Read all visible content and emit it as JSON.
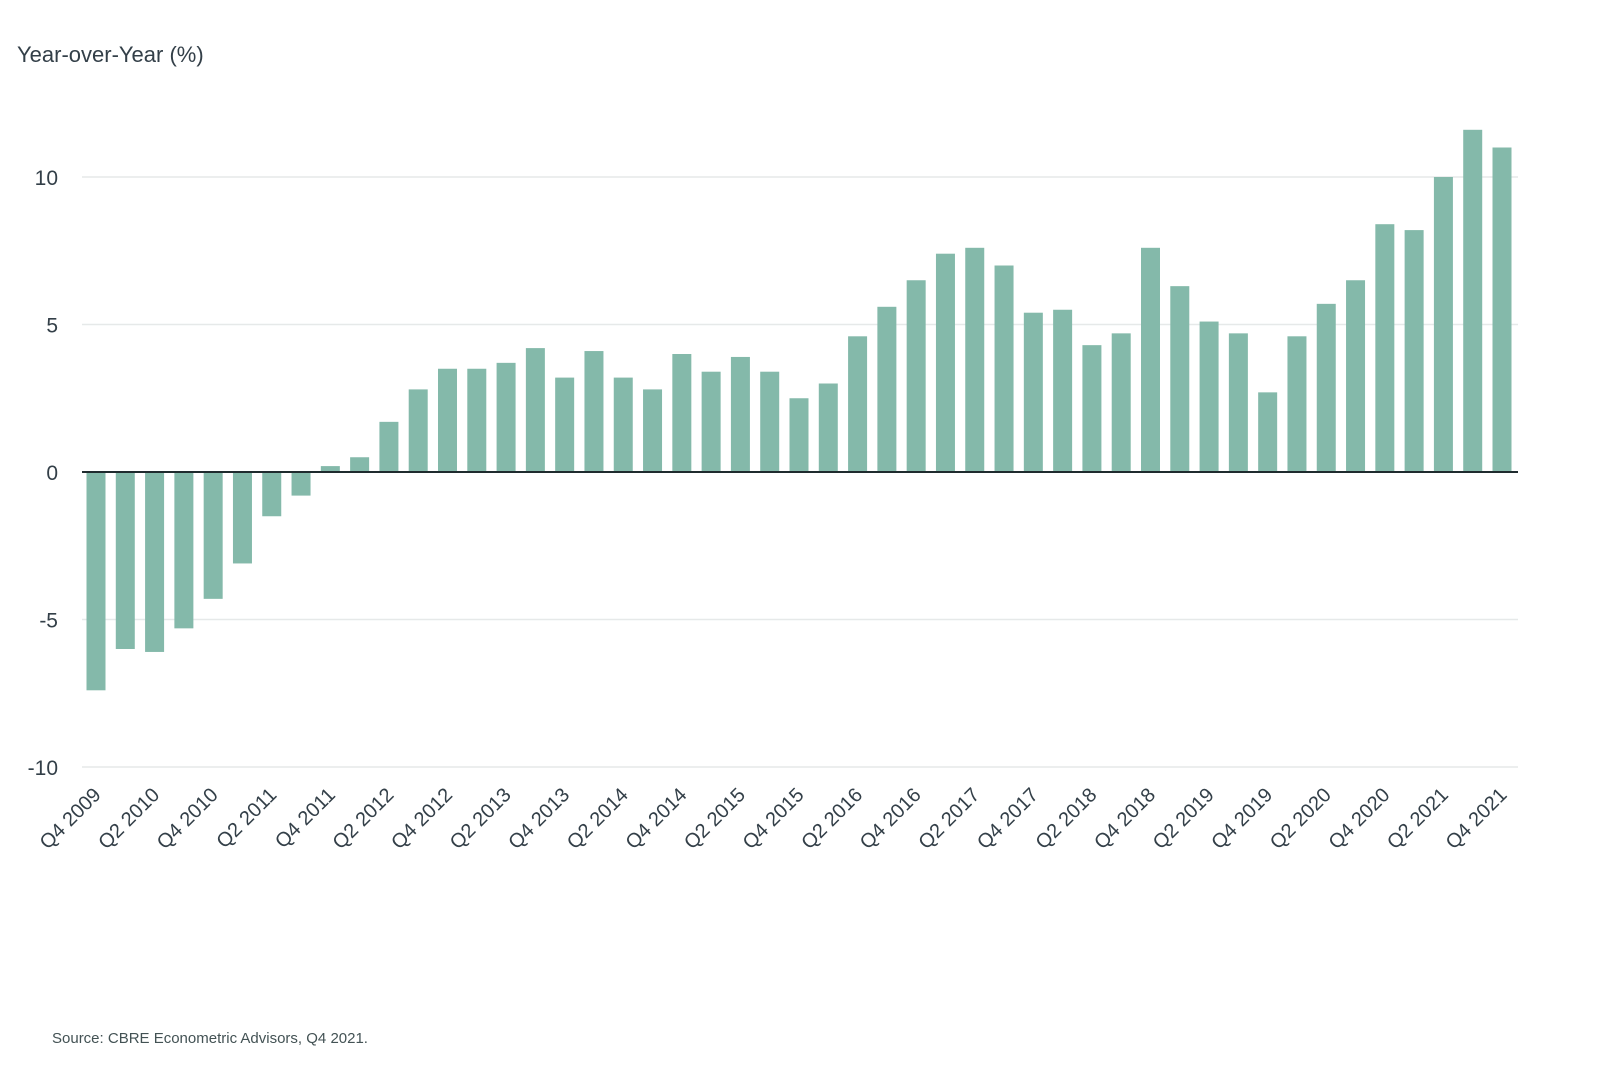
{
  "chart_data": {
    "type": "bar",
    "ylabel": "Year-over-Year (%)",
    "xlabel": "",
    "ylim": [
      -10,
      12
    ],
    "yticks": [
      10,
      5,
      0,
      -5,
      -10
    ],
    "grid": true,
    "bar_color": "#84b9aa",
    "categories": [
      "Q4 2009",
      "Q1 2010",
      "Q2 2010",
      "Q3 2010",
      "Q4 2010",
      "Q1 2011",
      "Q2 2011",
      "Q3 2011",
      "Q4 2011",
      "Q1 2012",
      "Q2 2012",
      "Q3 2012",
      "Q4 2012",
      "Q1 2013",
      "Q2 2013",
      "Q3 2013",
      "Q4 2013",
      "Q1 2014",
      "Q2 2014",
      "Q3 2014",
      "Q4 2014",
      "Q1 2015",
      "Q2 2015",
      "Q3 2015",
      "Q4 2015",
      "Q1 2016",
      "Q2 2016",
      "Q3 2016",
      "Q4 2016",
      "Q1 2017",
      "Q2 2017",
      "Q3 2017",
      "Q4 2017",
      "Q1 2018",
      "Q2 2018",
      "Q3 2018",
      "Q4 2018",
      "Q1 2019",
      "Q2 2019",
      "Q3 2019",
      "Q4 2019",
      "Q1 2020",
      "Q2 2020",
      "Q3 2020",
      "Q4 2020",
      "Q1 2021",
      "Q2 2021",
      "Q3 2021",
      "Q4 2021"
    ],
    "tick_labels": [
      "Q4 2009",
      "Q2 2010",
      "Q4 2010",
      "Q2 2011",
      "Q4 2011",
      "Q2 2012",
      "Q4 2012",
      "Q2 2013",
      "Q4 2013",
      "Q2 2014",
      "Q4 2014",
      "Q2 2015",
      "Q4 2015",
      "Q2 2016",
      "Q4 2016",
      "Q2 2017",
      "Q4 2017",
      "Q2 2018",
      "Q4 2018",
      "Q2 2019",
      "Q4 2019",
      "Q2 2020",
      "Q4 2020",
      "Q2 2021",
      "Q4 2021"
    ],
    "values": [
      -7.4,
      -6.0,
      -6.1,
      -5.3,
      -4.3,
      -3.1,
      -1.5,
      -0.8,
      0.2,
      0.5,
      1.7,
      2.8,
      3.5,
      3.5,
      3.7,
      4.2,
      3.2,
      4.1,
      3.2,
      2.8,
      4.0,
      3.4,
      3.9,
      3.4,
      2.5,
      3.0,
      4.6,
      5.6,
      6.5,
      7.4,
      7.6,
      7.0,
      5.4,
      5.5,
      4.3,
      4.7,
      7.6,
      6.3,
      5.1,
      4.7,
      2.7,
      4.6,
      5.7,
      6.5,
      8.4,
      8.2,
      10.0,
      11.6,
      11.0
    ]
  },
  "source": "Source: CBRE Econometric Advisors, Q4 2021."
}
